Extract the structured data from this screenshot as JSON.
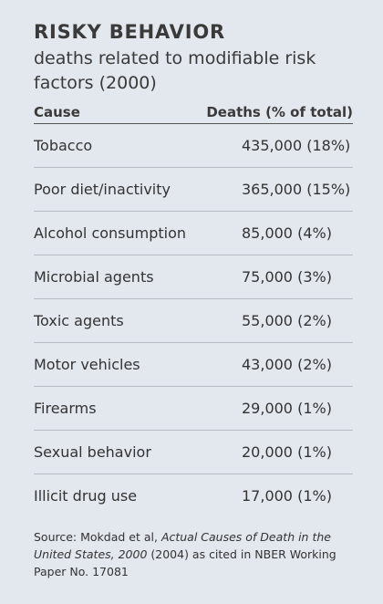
{
  "title": "RISKY BEHAVIOR",
  "subtitle": "deaths related to modifiable risk factors (2000)",
  "table": {
    "headers": {
      "cause": "Cause",
      "deaths": "Deaths (% of total)"
    },
    "rows": [
      {
        "cause": "Tobacco",
        "deaths": "435,000 (18%)"
      },
      {
        "cause": "Poor diet/inactivity",
        "deaths": "365,000 (15%)"
      },
      {
        "cause": "Alcohol consumption",
        "deaths": "85,000 (4%)"
      },
      {
        "cause": "Microbial agents",
        "deaths": "75,000 (3%)"
      },
      {
        "cause": "Toxic agents",
        "deaths": "55,000 (2%)"
      },
      {
        "cause": "Motor vehicles",
        "deaths": "43,000 (2%)"
      },
      {
        "cause": "Firearms",
        "deaths": "29,000 (1%)"
      },
      {
        "cause": "Sexual behavior",
        "deaths": "20,000 (1%)"
      },
      {
        "cause": "Illicit drug use",
        "deaths": "17,000 (1%)"
      }
    ]
  },
  "source": {
    "prefix": "Source: Mokdad et al, ",
    "publication": "Actual Causes of Death in the United States, 2000",
    "suffix": " (2004) as cited in NBER Working Paper No. 17081"
  },
  "colors": {
    "background": "#e3e7ee",
    "text": "#333333"
  }
}
